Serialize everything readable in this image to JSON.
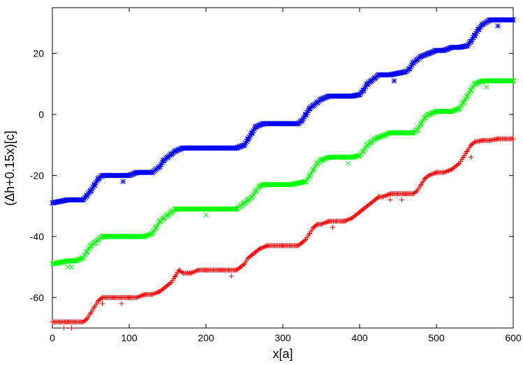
{
  "chart_data": {
    "type": "scatter",
    "title": "",
    "xlabel": "x[a]",
    "ylabel": "(Δh+0.15x)[c]",
    "xlim": [
      0,
      600
    ],
    "ylim": [
      -70,
      35
    ],
    "xticks": [
      0,
      100,
      200,
      300,
      400,
      500,
      600
    ],
    "yticks": [
      -60,
      -40,
      -20,
      0,
      20
    ],
    "grid": false,
    "legend": "none",
    "series": [
      {
        "color": "#0000ff",
        "marker": "asterisk",
        "points": [
          [
            0,
            -29
          ],
          [
            10,
            -28.5
          ],
          [
            20,
            -28
          ],
          [
            30,
            -28
          ],
          [
            40,
            -28
          ],
          [
            45,
            -26.5
          ],
          [
            50,
            -25
          ],
          [
            55,
            -23
          ],
          [
            60,
            -21
          ],
          [
            65,
            -20
          ],
          [
            70,
            -20
          ],
          [
            80,
            -20
          ],
          [
            90,
            -20
          ],
          [
            100,
            -20
          ],
          [
            110,
            -19
          ],
          [
            120,
            -19
          ],
          [
            130,
            -19
          ],
          [
            140,
            -17
          ],
          [
            145,
            -15
          ],
          [
            150,
            -14
          ],
          [
            155,
            -13
          ],
          [
            160,
            -12
          ],
          [
            170,
            -11
          ],
          [
            180,
            -11
          ],
          [
            190,
            -11
          ],
          [
            200,
            -11
          ],
          [
            210,
            -11
          ],
          [
            220,
            -11
          ],
          [
            230,
            -11
          ],
          [
            240,
            -11
          ],
          [
            250,
            -10
          ],
          [
            255,
            -8
          ],
          [
            260,
            -6
          ],
          [
            265,
            -4
          ],
          [
            270,
            -3.5
          ],
          [
            275,
            -3
          ],
          [
            290,
            -3
          ],
          [
            300,
            -3
          ],
          [
            310,
            -3
          ],
          [
            320,
            -3
          ],
          [
            325,
            -2
          ],
          [
            330,
            0
          ],
          [
            335,
            2
          ],
          [
            340,
            3
          ],
          [
            345,
            4
          ],
          [
            350,
            5
          ],
          [
            360,
            6
          ],
          [
            370,
            6
          ],
          [
            380,
            6
          ],
          [
            390,
            6
          ],
          [
            400,
            6.5
          ],
          [
            405,
            8
          ],
          [
            410,
            10
          ],
          [
            415,
            11
          ],
          [
            420,
            12
          ],
          [
            425,
            13
          ],
          [
            440,
            13
          ],
          [
            450,
            13.5
          ],
          [
            460,
            14
          ],
          [
            465,
            15
          ],
          [
            470,
            17
          ],
          [
            475,
            18
          ],
          [
            480,
            19
          ],
          [
            490,
            20
          ],
          [
            500,
            21
          ],
          [
            510,
            21
          ],
          [
            520,
            22
          ],
          [
            530,
            22
          ],
          [
            540,
            22.5
          ],
          [
            545,
            24
          ],
          [
            550,
            26
          ],
          [
            555,
            28
          ],
          [
            560,
            29.5
          ],
          [
            570,
            31
          ],
          [
            580,
            31
          ],
          [
            590,
            31
          ],
          [
            600,
            31
          ]
        ],
        "outliers": [
          [
            92,
            -22
          ],
          [
            445,
            11
          ],
          [
            580,
            29
          ]
        ]
      },
      {
        "color": "#00ff00",
        "marker": "x",
        "points": [
          [
            0,
            -49
          ],
          [
            10,
            -48.5
          ],
          [
            20,
            -48
          ],
          [
            30,
            -48
          ],
          [
            40,
            -47
          ],
          [
            45,
            -45
          ],
          [
            50,
            -43
          ],
          [
            55,
            -42
          ],
          [
            60,
            -41
          ],
          [
            65,
            -40
          ],
          [
            70,
            -40
          ],
          [
            80,
            -40
          ],
          [
            90,
            -40
          ],
          [
            100,
            -40
          ],
          [
            110,
            -40
          ],
          [
            120,
            -40
          ],
          [
            130,
            -39
          ],
          [
            135,
            -37
          ],
          [
            140,
            -35
          ],
          [
            145,
            -34
          ],
          [
            150,
            -33
          ],
          [
            155,
            -32
          ],
          [
            160,
            -31
          ],
          [
            170,
            -31
          ],
          [
            180,
            -31
          ],
          [
            190,
            -31
          ],
          [
            200,
            -31
          ],
          [
            210,
            -31
          ],
          [
            220,
            -31
          ],
          [
            230,
            -31
          ],
          [
            240,
            -31
          ],
          [
            250,
            -29
          ],
          [
            255,
            -28
          ],
          [
            260,
            -27
          ],
          [
            265,
            -25
          ],
          [
            270,
            -23.5
          ],
          [
            275,
            -23
          ],
          [
            290,
            -23
          ],
          [
            300,
            -23
          ],
          [
            310,
            -23
          ],
          [
            320,
            -22.5
          ],
          [
            330,
            -22
          ],
          [
            335,
            -20
          ],
          [
            340,
            -18
          ],
          [
            345,
            -16
          ],
          [
            350,
            -15
          ],
          [
            360,
            -14
          ],
          [
            370,
            -14
          ],
          [
            380,
            -14
          ],
          [
            390,
            -14
          ],
          [
            400,
            -13.5
          ],
          [
            405,
            -12
          ],
          [
            410,
            -10
          ],
          [
            415,
            -9
          ],
          [
            420,
            -8
          ],
          [
            430,
            -7
          ],
          [
            440,
            -6
          ],
          [
            450,
            -6
          ],
          [
            460,
            -6
          ],
          [
            470,
            -6
          ],
          [
            475,
            -5
          ],
          [
            480,
            -3
          ],
          [
            485,
            -1
          ],
          [
            490,
            0
          ],
          [
            500,
            1
          ],
          [
            510,
            1
          ],
          [
            520,
            1
          ],
          [
            530,
            2
          ],
          [
            535,
            4
          ],
          [
            540,
            6
          ],
          [
            545,
            8
          ],
          [
            550,
            10
          ],
          [
            560,
            11
          ],
          [
            570,
            11
          ],
          [
            580,
            11
          ],
          [
            590,
            11
          ],
          [
            600,
            11
          ]
        ],
        "outliers": [
          [
            20,
            -50
          ],
          [
            25,
            -50
          ],
          [
            200,
            -33
          ],
          [
            385,
            -16
          ],
          [
            565,
            9
          ]
        ]
      },
      {
        "color": "#ff0000",
        "marker": "plus",
        "points": [
          [
            0,
            -68
          ],
          [
            10,
            -68
          ],
          [
            20,
            -68
          ],
          [
            30,
            -68
          ],
          [
            40,
            -68
          ],
          [
            45,
            -67
          ],
          [
            50,
            -65
          ],
          [
            55,
            -63
          ],
          [
            60,
            -61
          ],
          [
            65,
            -60
          ],
          [
            70,
            -60
          ],
          [
            80,
            -60
          ],
          [
            90,
            -60
          ],
          [
            100,
            -60
          ],
          [
            110,
            -60
          ],
          [
            120,
            -59
          ],
          [
            130,
            -59
          ],
          [
            140,
            -58
          ],
          [
            145,
            -57
          ],
          [
            150,
            -56
          ],
          [
            155,
            -55
          ],
          [
            160,
            -53
          ],
          [
            165,
            -51
          ],
          [
            170,
            -52
          ],
          [
            180,
            -52
          ],
          [
            190,
            -51
          ],
          [
            200,
            -51
          ],
          [
            210,
            -51
          ],
          [
            220,
            -51
          ],
          [
            230,
            -51
          ],
          [
            240,
            -51
          ],
          [
            245,
            -50
          ],
          [
            250,
            -49
          ],
          [
            255,
            -47
          ],
          [
            260,
            -46
          ],
          [
            265,
            -45
          ],
          [
            270,
            -44
          ],
          [
            280,
            -43
          ],
          [
            290,
            -43
          ],
          [
            300,
            -43
          ],
          [
            310,
            -43
          ],
          [
            320,
            -43
          ],
          [
            325,
            -42
          ],
          [
            330,
            -41
          ],
          [
            335,
            -39
          ],
          [
            340,
            -37
          ],
          [
            345,
            -36
          ],
          [
            350,
            -36
          ],
          [
            360,
            -35
          ],
          [
            370,
            -35
          ],
          [
            380,
            -35
          ],
          [
            390,
            -34
          ],
          [
            395,
            -33
          ],
          [
            400,
            -32
          ],
          [
            405,
            -31
          ],
          [
            410,
            -30
          ],
          [
            415,
            -29
          ],
          [
            420,
            -28
          ],
          [
            425,
            -27
          ],
          [
            430,
            -27
          ],
          [
            440,
            -26
          ],
          [
            450,
            -26
          ],
          [
            460,
            -26
          ],
          [
            470,
            -26
          ],
          [
            475,
            -25
          ],
          [
            480,
            -23
          ],
          [
            485,
            -21
          ],
          [
            490,
            -20
          ],
          [
            500,
            -19
          ],
          [
            510,
            -19
          ],
          [
            520,
            -18
          ],
          [
            530,
            -16
          ],
          [
            535,
            -14
          ],
          [
            540,
            -12
          ],
          [
            545,
            -10
          ],
          [
            550,
            -9
          ],
          [
            560,
            -8.5
          ],
          [
            570,
            -8.5
          ],
          [
            580,
            -8
          ],
          [
            590,
            -8
          ],
          [
            600,
            -8
          ]
        ],
        "outliers": [
          [
            15,
            -70
          ],
          [
            25,
            -70
          ],
          [
            65,
            -62
          ],
          [
            90,
            -62
          ],
          [
            233,
            -53
          ],
          [
            365,
            -37
          ],
          [
            440,
            -28
          ],
          [
            455,
            -28
          ],
          [
            545,
            -14
          ]
        ]
      }
    ]
  }
}
